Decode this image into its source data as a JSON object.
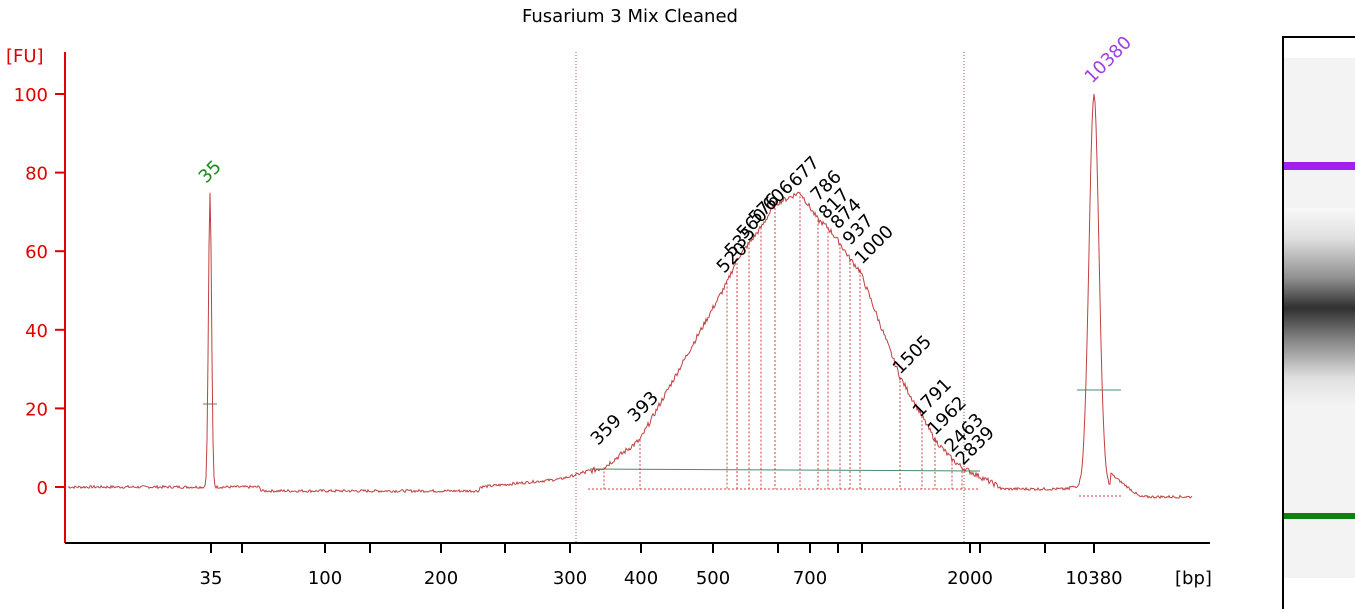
{
  "chart_data": {
    "type": "line",
    "title": "Fusarium 3 Mix Cleaned",
    "ylabel": "[FU]",
    "xlabel": "[bp]",
    "ylim": [
      -12,
      110
    ],
    "y_ticks": [
      "0",
      "20",
      "40",
      "60",
      "80",
      "100"
    ],
    "x_ticks": [
      "35",
      "100",
      "200",
      "300",
      "400",
      "500",
      "700",
      "2000",
      "10380"
    ],
    "series": [
      {
        "values": [
          [
            "35",
            0
          ],
          [
            "35",
            75
          ],
          [
            "35",
            0
          ],
          [
            "300",
            2
          ],
          [
            "359",
            5
          ],
          [
            "393",
            12
          ],
          [
            "500",
            45
          ],
          [
            "520",
            52
          ],
          [
            "535",
            58
          ],
          [
            "560",
            62
          ],
          [
            "576",
            66
          ],
          [
            "606",
            72
          ],
          [
            "677",
            75
          ],
          [
            "786",
            68
          ],
          [
            "817",
            66
          ],
          [
            "874",
            62
          ],
          [
            "937",
            58
          ],
          [
            "1000",
            55
          ],
          [
            "1505",
            28
          ],
          [
            "1791",
            18
          ],
          [
            "1962",
            12
          ],
          [
            "2463",
            7
          ],
          [
            "2839",
            5
          ],
          [
            "10380",
            0
          ],
          [
            "10380",
            100
          ],
          [
            "10380",
            -2
          ]
        ]
      }
    ],
    "peak_labels": {
      "lower_marker": "35",
      "upper_marker": "10380",
      "fragments": [
        "359",
        "393",
        "520",
        "535",
        "560",
        "576",
        "606",
        "677",
        "786",
        "817",
        "874",
        "937",
        "1000",
        "1505",
        "1791",
        "1962",
        "2463",
        "2839"
      ]
    },
    "colors": {
      "axis": "#e00000",
      "trace": "#c04040",
      "lower_marker": "#1a8a1a",
      "upper_marker": "#a040e0",
      "baseline": "#4a8a6a"
    }
  }
}
